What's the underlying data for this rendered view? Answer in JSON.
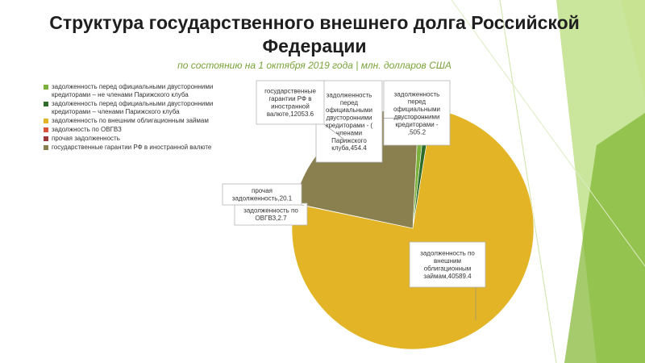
{
  "slide": {
    "title": "Структура государственного внешнего долга Российской Федерации",
    "subtitle": "по состоянию на 1 октября 2019 года | млн. долларов США"
  },
  "chart_data": {
    "type": "pie",
    "series": [
      {
        "label": "задолженность перед официальными двусторонними кредиторами – не членами Парижского клуба",
        "value": 505.2,
        "color": "#7bb13b",
        "callout": [
          "задолженность",
          "перед",
          "официальными",
          "двусторонними",
          "кредиторами -",
          ",505.2"
        ]
      },
      {
        "label": "задолженность перед официальными двусторонними кредиторами – членами Парижского клуба",
        "value": 454.4,
        "color": "#2f6b2a",
        "callout": [
          "задолженность",
          "перед",
          "официальными",
          "двусторонними",
          "кредиторами - (",
          "членами",
          "Парижского",
          "клуба,454.4"
        ]
      },
      {
        "label": "задолженность по внешним облигационным займам",
        "value": 40589.4,
        "color": "#e3b526",
        "callout": [
          "задолженность по",
          "внешним",
          "облигационным",
          "займам,40589.4"
        ]
      },
      {
        "label": "задолжность по ОВГВЗ",
        "value": 2.7,
        "color": "#d9533a",
        "callout": [
          "задолженность по",
          "ОВГВЗ,2.7"
        ]
      },
      {
        "label": "прочая задолженность",
        "value": 20.1,
        "color": "#9b3a3a",
        "callout": [
          "прочая",
          "задолженность,20.1"
        ]
      },
      {
        "label": "государственные гарантии РФ в иностранной валюте",
        "value": 12053.6,
        "color": "#8a7f4e",
        "callout": [
          "государственные",
          "гарантии РФ в",
          "иностранной",
          "валюте,12053.6"
        ]
      }
    ]
  },
  "legend": [
    {
      "text": "задолженность перед официальными двусторонними кредиторами – не членами Парижского клуба",
      "color": "#7bb13b"
    },
    {
      "text": "задолженность перед официальными двусторонними кредиторами – членами Парижского клуба",
      "color": "#2f6b2a"
    },
    {
      "text": "задолженность по внешним облигационным займам",
      "color": "#e3b526"
    },
    {
      "text": "задолжность по ОВГВЗ",
      "color": "#d9533a"
    },
    {
      "text": "прочая задолженность",
      "color": "#9b3a3a"
    },
    {
      "text": "государственные гарантии РФ в иностранной валюте",
      "color": "#8a7f4e"
    }
  ]
}
